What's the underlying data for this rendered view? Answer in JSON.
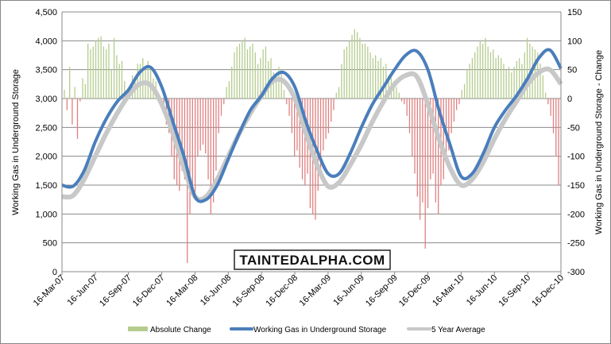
{
  "chart_data": {
    "type": "bar+line",
    "watermark": "TAINTEDALPHA.COM",
    "ylabel_left": "Working Gas in Underground Storage",
    "ylabel_right": "Working Gas in Underground Storage - Change",
    "ylim_left": [
      0,
      4500
    ],
    "ylim_right": [
      -300,
      150
    ],
    "yticks_left": [
      "0",
      "500",
      "1,000",
      "1,500",
      "2,000",
      "2,500",
      "3,000",
      "3,500",
      "4,000",
      "4,500"
    ],
    "yticks_right": [
      "-300",
      "-250",
      "-200",
      "-150",
      "-100",
      "-50",
      "0",
      "50",
      "100",
      "150"
    ],
    "xticks": [
      "16-Mar-07",
      "16-Jun-07",
      "16-Sep-07",
      "16-Dec-07",
      "16-Mar-08",
      "16-Jun-08",
      "16-Sep-08",
      "16-Dec-08",
      "16-Mar-09",
      "16-Jun-09",
      "16-Sep-09",
      "16-Dec-09",
      "16-Mar-10",
      "16-Jun-10",
      "16-Sep-10",
      "16-Dec-10"
    ],
    "legend": [
      "Absolute Change",
      "Working Gas in Underground Storage",
      "5 Year Average"
    ],
    "legend_position": "bottom",
    "colors": {
      "change_pos": "#b5cc8e",
      "change_neg": "#e08080",
      "storage": "#4a7ebb",
      "average": "#c8c8c8",
      "grid": "#888888"
    },
    "storage_monthly": [
      1500,
      1480,
      1750,
      2250,
      2650,
      2950,
      3150,
      3450,
      3540,
      3200,
      2600,
      2000,
      1300,
      1250,
      1500,
      1950,
      2400,
      2800,
      3050,
      3350,
      3450,
      3200,
      2600,
      2100,
      1700,
      1700,
      2050,
      2500,
      2900,
      3200,
      3500,
      3750,
      3820,
      3500,
      2800,
      2200,
      1650,
      1700,
      2050,
      2500,
      2800,
      3050,
      3350,
      3700,
      3840,
      3520
    ],
    "average_monthly": [
      1300,
      1320,
      1600,
      2000,
      2400,
      2750,
      3050,
      3250,
      3230,
      2900,
      2400,
      1800,
      1300,
      1300,
      1600,
      2000,
      2400,
      2750,
      3050,
      3300,
      3300,
      3000,
      2400,
      1850,
      1480,
      1550,
      1850,
      2200,
      2600,
      2950,
      3250,
      3400,
      3380,
      2900,
      2300,
      1800,
      1500,
      1600,
      1900,
      2300,
      2650,
      2950,
      3250,
      3450,
      3500,
      3250
    ],
    "weekly_change": [
      15,
      -20,
      55,
      -45,
      20,
      -70,
      -5,
      35,
      25,
      95,
      85,
      90,
      100,
      105,
      108,
      90,
      85,
      95,
      50,
      105,
      75,
      60,
      65,
      30,
      10,
      15,
      40,
      35,
      60,
      60,
      70,
      50,
      65,
      55,
      35,
      30,
      5,
      -10,
      -20,
      -45,
      -60,
      -100,
      -140,
      -150,
      -160,
      -125,
      -140,
      -285,
      -200,
      -150,
      -170,
      -100,
      -90,
      -80,
      -95,
      -140,
      -200,
      -180,
      -125,
      -60,
      -30,
      -10,
      20,
      30,
      55,
      80,
      90,
      95,
      100,
      105,
      85,
      90,
      95,
      80,
      60,
      70,
      85,
      90,
      65,
      70,
      45,
      30,
      55,
      50,
      15,
      -10,
      -30,
      -60,
      -100,
      -90,
      -120,
      -140,
      -150,
      -130,
      -190,
      -200,
      -210,
      -160,
      -135,
      -90,
      -70,
      -60,
      -40,
      -20,
      10,
      20,
      60,
      85,
      90,
      100,
      110,
      120,
      115,
      105,
      95,
      95,
      90,
      80,
      70,
      75,
      65,
      70,
      55,
      60,
      40,
      35,
      30,
      20,
      10,
      -5,
      -10,
      -30,
      -60,
      -100,
      -130,
      -170,
      -210,
      -180,
      -260,
      -190,
      -140,
      -130,
      -180,
      -200,
      -150,
      -140,
      -100,
      -90,
      -60,
      -40,
      -20,
      -10,
      15,
      25,
      50,
      60,
      70,
      80,
      90,
      100,
      95,
      105,
      90,
      80,
      85,
      70,
      75,
      70,
      60,
      50,
      55,
      45,
      55,
      65,
      70,
      60,
      80,
      105,
      95,
      90,
      85,
      80,
      60,
      40,
      10,
      -10,
      -30,
      -60,
      -100,
      -150
    ]
  }
}
